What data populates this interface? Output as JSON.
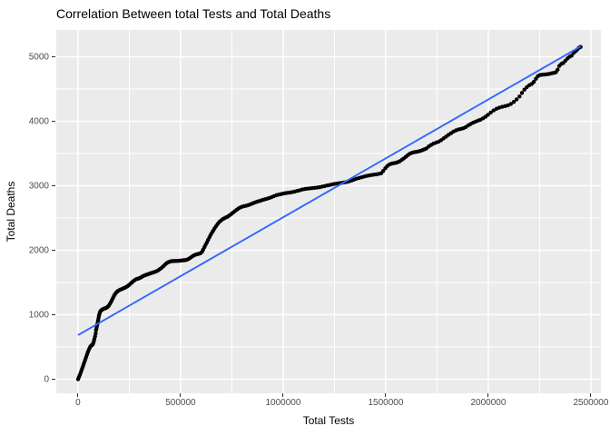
{
  "chart_data": {
    "type": "scatter",
    "title": "Correlation Between total Tests and Total Deaths",
    "xlabel": "Total Tests",
    "ylabel": "Total Deaths",
    "legend": false,
    "grid": true,
    "xlim": [
      -106000,
      2549000
    ],
    "ylim": [
      -218,
      5416
    ],
    "x_ticks": [
      {
        "value": 0,
        "label": "0"
      },
      {
        "value": 500000,
        "label": "500000"
      },
      {
        "value": 1000000,
        "label": "1000000"
      },
      {
        "value": 1500000,
        "label": "1500000"
      },
      {
        "value": 2000000,
        "label": "2000000"
      },
      {
        "value": 2500000,
        "label": "2500000"
      }
    ],
    "y_ticks": [
      {
        "value": 0,
        "label": "0"
      },
      {
        "value": 1000,
        "label": "1000"
      },
      {
        "value": 2000,
        "label": "2000"
      },
      {
        "value": 3000,
        "label": "3000"
      },
      {
        "value": 4000,
        "label": "4000"
      },
      {
        "value": 5000,
        "label": "5000"
      }
    ],
    "x_minor_ticks": [
      250000,
      750000,
      1250000,
      1750000,
      2250000
    ],
    "y_minor_ticks": [
      500,
      1500,
      2500,
      3500,
      4500
    ],
    "regression_line": {
      "x1": 0,
      "y1": 685,
      "x2": 2450000,
      "y2": 5160
    },
    "colors": {
      "point": "#000000",
      "line": "#3366FF",
      "panel_bg": "#EBEBEB",
      "grid_major": "#FFFFFF",
      "grid_minor": "#FFFFFF",
      "tick_label": "#4D4D4D",
      "tick_mark": "#333333",
      "title": "#000000"
    },
    "points": [
      [
        0,
        0
      ],
      [
        4000,
        30
      ],
      [
        8000,
        62
      ],
      [
        12000,
        95
      ],
      [
        16000,
        130
      ],
      [
        20000,
        165
      ],
      [
        24000,
        200
      ],
      [
        28000,
        238
      ],
      [
        32000,
        275
      ],
      [
        36000,
        312
      ],
      [
        40000,
        348
      ],
      [
        44000,
        385
      ],
      [
        48000,
        420
      ],
      [
        52000,
        452
      ],
      [
        56000,
        480
      ],
      [
        60000,
        505
      ],
      [
        64000,
        522
      ],
      [
        68000,
        530
      ],
      [
        71000,
        537
      ],
      [
        74000,
        560
      ],
      [
        77000,
        590
      ],
      [
        80000,
        625
      ],
      [
        83000,
        665
      ],
      [
        86000,
        710
      ],
      [
        88000,
        760
      ],
      [
        90000,
        790
      ],
      [
        92000,
        820
      ],
      [
        94000,
        850
      ],
      [
        96000,
        880
      ],
      [
        98000,
        915
      ],
      [
        100000,
        950
      ],
      [
        102000,
        985
      ],
      [
        104000,
        1010
      ],
      [
        107000,
        1040
      ],
      [
        110000,
        1058
      ],
      [
        113000,
        1068
      ],
      [
        116000,
        1075
      ],
      [
        120000,
        1085
      ],
      [
        125000,
        1092
      ],
      [
        130000,
        1097
      ],
      [
        135000,
        1103
      ],
      [
        140000,
        1112
      ],
      [
        145000,
        1125
      ],
      [
        150000,
        1143
      ],
      [
        155000,
        1168
      ],
      [
        160000,
        1195
      ],
      [
        165000,
        1225
      ],
      [
        170000,
        1258
      ],
      [
        175000,
        1290
      ],
      [
        180000,
        1318
      ],
      [
        185000,
        1340
      ],
      [
        190000,
        1358
      ],
      [
        195000,
        1370
      ],
      [
        201000,
        1380
      ],
      [
        207000,
        1390
      ],
      [
        213000,
        1398
      ],
      [
        220000,
        1408
      ],
      [
        227000,
        1418
      ],
      [
        234000,
        1428
      ],
      [
        241000,
        1442
      ],
      [
        248000,
        1460
      ],
      [
        255000,
        1480
      ],
      [
        262000,
        1500
      ],
      [
        269000,
        1518
      ],
      [
        276000,
        1535
      ],
      [
        283000,
        1549
      ],
      [
        290000,
        1558
      ],
      [
        297000,
        1564
      ],
      [
        304000,
        1575
      ],
      [
        311000,
        1588
      ],
      [
        318000,
        1600
      ],
      [
        325000,
        1610
      ],
      [
        332000,
        1618
      ],
      [
        339000,
        1626
      ],
      [
        346000,
        1634
      ],
      [
        353000,
        1642
      ],
      [
        360000,
        1650
      ],
      [
        368000,
        1658
      ],
      [
        376000,
        1666
      ],
      [
        384000,
        1678
      ],
      [
        392000,
        1692
      ],
      [
        400000,
        1710
      ],
      [
        408000,
        1730
      ],
      [
        416000,
        1752
      ],
      [
        424000,
        1778
      ],
      [
        432000,
        1800
      ],
      [
        440000,
        1815
      ],
      [
        448000,
        1825
      ],
      [
        456000,
        1831
      ],
      [
        464000,
        1833
      ],
      [
        472000,
        1834
      ],
      [
        480000,
        1835
      ],
      [
        488000,
        1836
      ],
      [
        496000,
        1838
      ],
      [
        504000,
        1841
      ],
      [
        512000,
        1844
      ],
      [
        518000,
        1845
      ],
      [
        525000,
        1848
      ],
      [
        532000,
        1855
      ],
      [
        540000,
        1868
      ],
      [
        548000,
        1885
      ],
      [
        556000,
        1902
      ],
      [
        564000,
        1918
      ],
      [
        572000,
        1930
      ],
      [
        580000,
        1938
      ],
      [
        588000,
        1944
      ],
      [
        596000,
        1952
      ],
      [
        604000,
        1975
      ],
      [
        610000,
        2010
      ],
      [
        616000,
        2048
      ],
      [
        622000,
        2085
      ],
      [
        628000,
        2122
      ],
      [
        634000,
        2160
      ],
      [
        640000,
        2198
      ],
      [
        646000,
        2235
      ],
      [
        652000,
        2268
      ],
      [
        658000,
        2300
      ],
      [
        665000,
        2335
      ],
      [
        672000,
        2370
      ],
      [
        680000,
        2405
      ],
      [
        688000,
        2435
      ],
      [
        696000,
        2460
      ],
      [
        704000,
        2480
      ],
      [
        712000,
        2495
      ],
      [
        720000,
        2507
      ],
      [
        729000,
        2520
      ],
      [
        738000,
        2540
      ],
      [
        747000,
        2562
      ],
      [
        756000,
        2585
      ],
      [
        765000,
        2608
      ],
      [
        774000,
        2630
      ],
      [
        783000,
        2650
      ],
      [
        792000,
        2665
      ],
      [
        801000,
        2676
      ],
      [
        810000,
        2684
      ],
      [
        820000,
        2690
      ],
      [
        830000,
        2700
      ],
      [
        840000,
        2712
      ],
      [
        850000,
        2725
      ],
      [
        860000,
        2738
      ],
      [
        870000,
        2750
      ],
      [
        880000,
        2760
      ],
      [
        890000,
        2770
      ],
      [
        900000,
        2780
      ],
      [
        911000,
        2790
      ],
      [
        922000,
        2800
      ],
      [
        933000,
        2812
      ],
      [
        944000,
        2825
      ],
      [
        955000,
        2840
      ],
      [
        966000,
        2852
      ],
      [
        977000,
        2862
      ],
      [
        988000,
        2870
      ],
      [
        999000,
        2878
      ],
      [
        1010000,
        2885
      ],
      [
        1022000,
        2890
      ],
      [
        1034000,
        2896
      ],
      [
        1046000,
        2903
      ],
      [
        1058000,
        2912
      ],
      [
        1070000,
        2922
      ],
      [
        1082000,
        2932
      ],
      [
        1094000,
        2942
      ],
      [
        1106000,
        2950
      ],
      [
        1118000,
        2956
      ],
      [
        1130000,
        2960
      ],
      [
        1142000,
        2964
      ],
      [
        1154000,
        2968
      ],
      [
        1166000,
        2972
      ],
      [
        1178000,
        2978
      ],
      [
        1190000,
        2986
      ],
      [
        1202000,
        2995
      ],
      [
        1214000,
        3004
      ],
      [
        1226000,
        3012
      ],
      [
        1238000,
        3020
      ],
      [
        1250000,
        3028
      ],
      [
        1262000,
        3034
      ],
      [
        1274000,
        3040
      ],
      [
        1286000,
        3046
      ],
      [
        1298000,
        3052
      ],
      [
        1310000,
        3060
      ],
      [
        1322000,
        3070
      ],
      [
        1334000,
        3082
      ],
      [
        1346000,
        3096
      ],
      [
        1358000,
        3110
      ],
      [
        1370000,
        3122
      ],
      [
        1382000,
        3132
      ],
      [
        1394000,
        3142
      ],
      [
        1406000,
        3152
      ],
      [
        1418000,
        3160
      ],
      [
        1430000,
        3166
      ],
      [
        1442000,
        3172
      ],
      [
        1454000,
        3178
      ],
      [
        1466000,
        3185
      ],
      [
        1478000,
        3195
      ],
      [
        1488000,
        3230
      ],
      [
        1498000,
        3272
      ],
      [
        1508000,
        3308
      ],
      [
        1518000,
        3330
      ],
      [
        1528000,
        3342
      ],
      [
        1538000,
        3350
      ],
      [
        1548000,
        3356
      ],
      [
        1558000,
        3365
      ],
      [
        1568000,
        3380
      ],
      [
        1578000,
        3402
      ],
      [
        1588000,
        3425
      ],
      [
        1598000,
        3450
      ],
      [
        1608000,
        3475
      ],
      [
        1618000,
        3498
      ],
      [
        1628000,
        3512
      ],
      [
        1638000,
        3520
      ],
      [
        1648000,
        3526
      ],
      [
        1658000,
        3532
      ],
      [
        1668000,
        3540
      ],
      [
        1678000,
        3552
      ],
      [
        1688000,
        3565
      ],
      [
        1698000,
        3580
      ],
      [
        1710000,
        3610
      ],
      [
        1722000,
        3635
      ],
      [
        1734000,
        3655
      ],
      [
        1746000,
        3670
      ],
      [
        1758000,
        3685
      ],
      [
        1770000,
        3708
      ],
      [
        1782000,
        3735
      ],
      [
        1794000,
        3762
      ],
      [
        1806000,
        3790
      ],
      [
        1818000,
        3815
      ],
      [
        1830000,
        3840
      ],
      [
        1842000,
        3858
      ],
      [
        1854000,
        3872
      ],
      [
        1866000,
        3882
      ],
      [
        1878000,
        3892
      ],
      [
        1890000,
        3910
      ],
      [
        1902000,
        3935
      ],
      [
        1914000,
        3958
      ],
      [
        1926000,
        3978
      ],
      [
        1938000,
        3995
      ],
      [
        1950000,
        4010
      ],
      [
        1962000,
        4025
      ],
      [
        1974000,
        4045
      ],
      [
        1986000,
        4070
      ],
      [
        1998000,
        4100
      ],
      [
        2012000,
        4135
      ],
      [
        2026000,
        4168
      ],
      [
        2040000,
        4195
      ],
      [
        2054000,
        4212
      ],
      [
        2068000,
        4225
      ],
      [
        2082000,
        4235
      ],
      [
        2096000,
        4248
      ],
      [
        2110000,
        4270
      ],
      [
        2124000,
        4300
      ],
      [
        2138000,
        4340
      ],
      [
        2152000,
        4385
      ],
      [
        2164000,
        4440
      ],
      [
        2176000,
        4490
      ],
      [
        2188000,
        4530
      ],
      [
        2200000,
        4560
      ],
      [
        2212000,
        4580
      ],
      [
        2222000,
        4610
      ],
      [
        2232000,
        4660
      ],
      [
        2242000,
        4700
      ],
      [
        2252000,
        4718
      ],
      [
        2262000,
        4722
      ],
      [
        2272000,
        4725
      ],
      [
        2282000,
        4728
      ],
      [
        2292000,
        4732
      ],
      [
        2302000,
        4738
      ],
      [
        2312000,
        4745
      ],
      [
        2322000,
        4752
      ],
      [
        2330000,
        4762
      ],
      [
        2338000,
        4800
      ],
      [
        2346000,
        4858
      ],
      [
        2356000,
        4890
      ],
      [
        2366000,
        4905
      ],
      [
        2376000,
        4940
      ],
      [
        2386000,
        4975
      ],
      [
        2396000,
        5000
      ],
      [
        2406000,
        5018
      ],
      [
        2416000,
        5060
      ],
      [
        2426000,
        5088
      ],
      [
        2434000,
        5115
      ],
      [
        2442000,
        5140
      ],
      [
        2450000,
        5152
      ]
    ]
  }
}
